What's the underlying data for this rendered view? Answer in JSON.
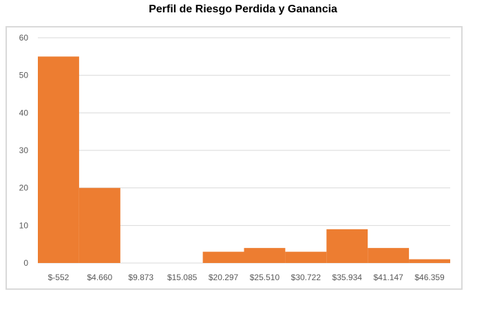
{
  "chart_data": {
    "type": "bar",
    "title": "Perfil de Riesgo Perdida y Ganancia",
    "xlabel": "",
    "ylabel": "",
    "categories": [
      "$-552",
      "$4.660",
      "$9.873",
      "$15.085",
      "$20.297",
      "$25.510",
      "$30.722",
      "$35.934",
      "$41.147",
      "$46.359"
    ],
    "values": [
      55,
      20,
      0,
      0,
      3,
      4,
      3,
      9,
      4,
      1
    ],
    "ylim": [
      0,
      60
    ],
    "yticks": [
      0,
      10,
      20,
      30,
      40,
      50,
      60
    ],
    "grid": true,
    "bar_color": "#ed7d31",
    "grid_color": "#d9d9d9",
    "legend": "none"
  }
}
